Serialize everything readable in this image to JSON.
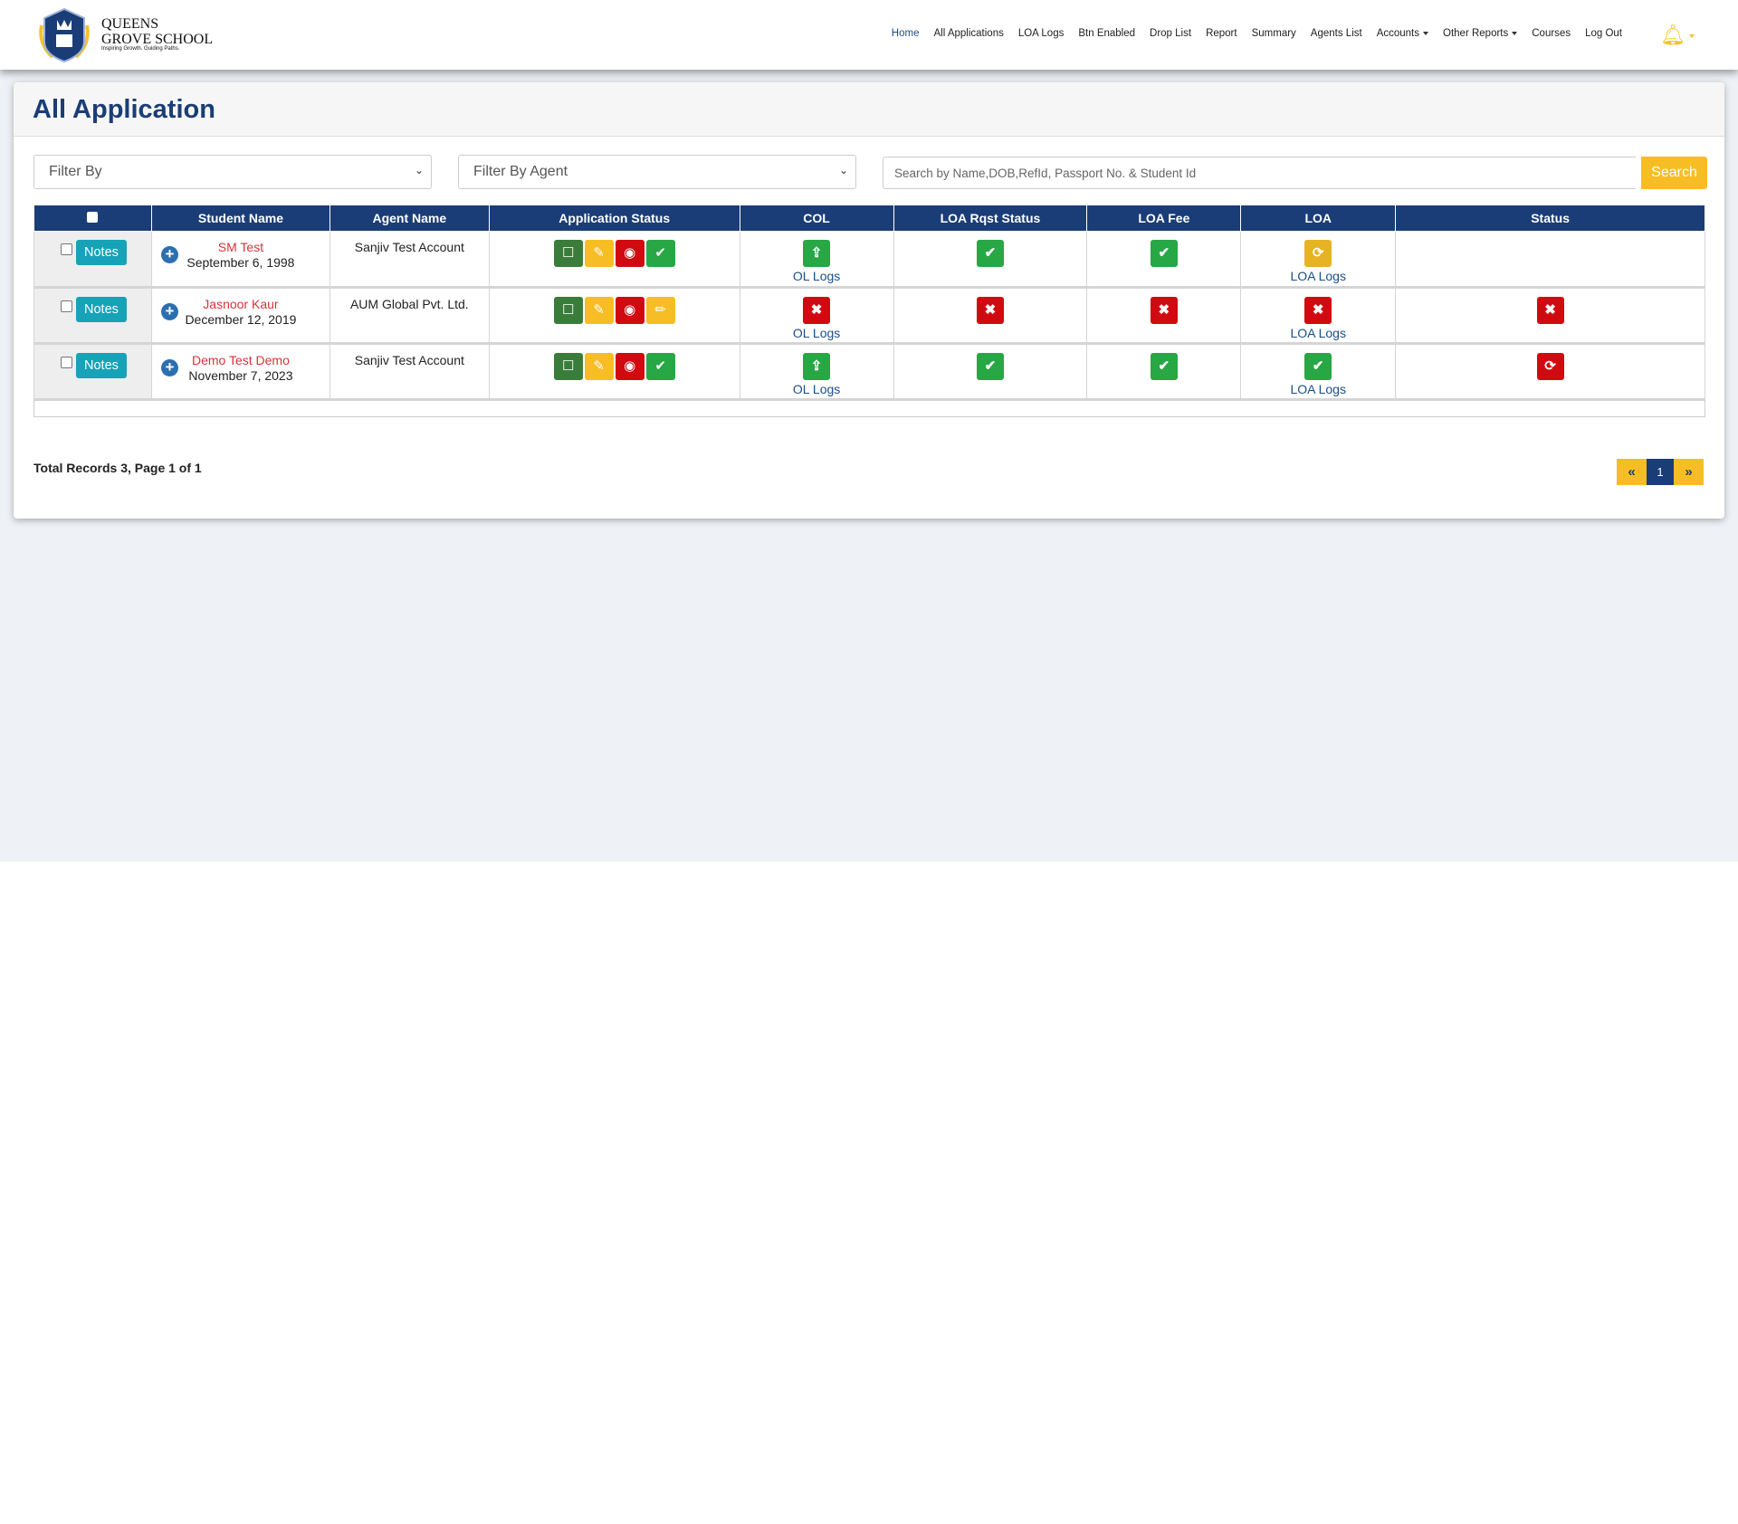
{
  "brand": {
    "line1": "QUEENS",
    "line2": "GROVE SCHOOL",
    "tagline": "Inspiring Growth. Guiding Paths."
  },
  "nav": [
    "Home",
    "All Applications",
    "LOA Logs",
    "Btn Enabled",
    "Drop List",
    "Report",
    "Summary",
    "Agents List",
    "Accounts",
    "Other Reports",
    "Courses",
    "Log Out"
  ],
  "page_title": "All Application",
  "filters": {
    "filter_by": "Filter By",
    "filter_agent": "Filter By Agent",
    "search_placeholder": "Search by Name,DOB,RefId, Passport No. & Student Id",
    "search_button": "Search"
  },
  "table": {
    "headers": [
      "",
      "Student Name",
      "Agent Name",
      "Application Status",
      "COL",
      "LOA Rqst Status",
      "LOA Fee",
      "LOA",
      "Status"
    ],
    "notes_label": "Notes",
    "rows": [
      {
        "name": "SM Test",
        "dob": "September 6, 1998",
        "agent": "Sanjiv Test Account",
        "app": [
          "comment",
          "edit",
          "view",
          "check"
        ],
        "col": "upload",
        "col_link": "OL Logs",
        "rqst": "check",
        "fee": "check",
        "loa": "refresh-yellow",
        "loa_link": "LOA Logs",
        "status": ""
      },
      {
        "name": "Jasnoor Kaur",
        "dob": "December 12, 2019",
        "agent": "AUM Global Pvt. Ltd.",
        "app": [
          "comment",
          "edit",
          "view",
          "pencil"
        ],
        "col": "x",
        "col_link": "OL Logs",
        "rqst": "x",
        "fee": "x",
        "loa": "x",
        "loa_link": "LOA Logs",
        "status": "x"
      },
      {
        "name": "Demo Test Demo",
        "dob": "November 7, 2023",
        "agent": "Sanjiv Test Account",
        "app": [
          "comment",
          "edit",
          "view",
          "check"
        ],
        "col": "upload",
        "col_link": "OL Logs",
        "rqst": "check",
        "fee": "check",
        "loa": "check",
        "loa_link": "LOA Logs",
        "status": "refresh-red"
      }
    ]
  },
  "footer": {
    "total": "Total Records 3, Page 1 of 1",
    "page": "1",
    "prev": "«",
    "next": "»"
  },
  "colors": {
    "primary": "#1a3d77",
    "yellow": "#f7bd25",
    "green": "#28a745",
    "darkgreen": "#3a7d3a",
    "red": "#d10a11",
    "teal": "#17a2b8"
  }
}
